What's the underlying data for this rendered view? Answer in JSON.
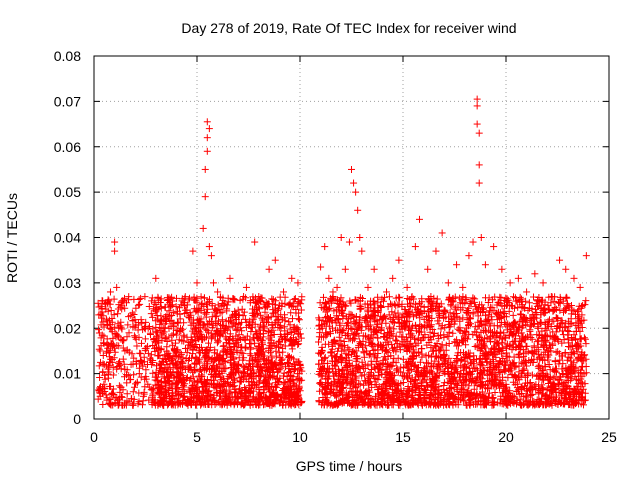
{
  "chart_data": {
    "type": "scatter",
    "title": "Day 278 of 2019, Rate Of TEC Index for receiver wind",
    "xlabel": "GPS time / hours",
    "ylabel": "ROTI / TECUs",
    "xlim": [
      0,
      25
    ],
    "ylim": [
      0,
      0.08
    ],
    "xticks": [
      0,
      5,
      10,
      15,
      20,
      25
    ],
    "xtick_labels": [
      "0",
      "5",
      "10",
      "15",
      "20",
      "25"
    ],
    "yticks": [
      0,
      0.01,
      0.02,
      0.03,
      0.04,
      0.05,
      0.06,
      0.07,
      0.08
    ],
    "ytick_labels": [
      "0",
      "0.01",
      "0.02",
      "0.03",
      "0.04",
      "0.05",
      "0.06",
      "0.07",
      "0.08"
    ],
    "grid": true,
    "marker": "+",
    "color": "#ff0000",
    "series": [
      {
        "values_note_free": true,
        "points": [
          [
            0.2,
            0.0255
          ],
          [
            0.3,
            0.015
          ],
          [
            0.3,
            0.005
          ],
          [
            0.4,
            0.0185
          ],
          [
            0.5,
            0.012
          ],
          [
            0.6,
            0.022
          ],
          [
            0.7,
            0.009
          ],
          [
            0.8,
            0.028
          ],
          [
            0.9,
            0.016
          ],
          [
            1.0,
            0.039
          ],
          [
            1.0,
            0.037
          ],
          [
            1.1,
            0.029
          ],
          [
            1.1,
            0.011
          ],
          [
            1.2,
            0.02
          ],
          [
            1.3,
            0.007
          ],
          [
            1.4,
            0.026
          ],
          [
            1.5,
            0.015
          ],
          [
            1.6,
            0.004
          ],
          [
            1.7,
            0.019
          ],
          [
            1.8,
            0.012
          ],
          [
            1.9,
            0.003
          ],
          [
            2.0,
            0.018
          ],
          [
            2.1,
            0.008
          ],
          [
            2.2,
            0.01
          ],
          [
            2.4,
            0.005
          ],
          [
            2.6,
            0.016
          ],
          [
            2.8,
            0.012
          ],
          [
            3.0,
            0.031
          ],
          [
            3.1,
            0.022
          ],
          [
            3.2,
            0.014
          ],
          [
            3.5,
            0.018
          ],
          [
            3.8,
            0.026
          ],
          [
            4.0,
            0.012
          ],
          [
            4.2,
            0.02
          ],
          [
            4.5,
            0.024
          ],
          [
            4.8,
            0.037
          ],
          [
            5.0,
            0.03
          ],
          [
            5.1,
            0.022
          ],
          [
            5.3,
            0.042
          ],
          [
            5.4,
            0.049
          ],
          [
            5.4,
            0.055
          ],
          [
            5.5,
            0.059
          ],
          [
            5.5,
            0.062
          ],
          [
            5.5,
            0.0655
          ],
          [
            5.6,
            0.064
          ],
          [
            5.6,
            0.038
          ],
          [
            5.7,
            0.036
          ],
          [
            5.8,
            0.03
          ],
          [
            6.0,
            0.028
          ],
          [
            6.3,
            0.025
          ],
          [
            6.6,
            0.031
          ],
          [
            7.0,
            0.024
          ],
          [
            7.4,
            0.029
          ],
          [
            7.8,
            0.039
          ],
          [
            8.0,
            0.027
          ],
          [
            8.5,
            0.033
          ],
          [
            8.8,
            0.035
          ],
          [
            9.2,
            0.028
          ],
          [
            9.6,
            0.031
          ],
          [
            9.9,
            0.03
          ],
          [
            11.0,
            0.0335
          ],
          [
            11.2,
            0.038
          ],
          [
            11.4,
            0.031
          ],
          [
            11.6,
            0.028
          ],
          [
            11.8,
            0.029
          ],
          [
            12.0,
            0.04
          ],
          [
            12.2,
            0.033
          ],
          [
            12.4,
            0.039
          ],
          [
            12.5,
            0.055
          ],
          [
            12.6,
            0.052
          ],
          [
            12.7,
            0.05
          ],
          [
            12.8,
            0.046
          ],
          [
            12.9,
            0.04
          ],
          [
            13.0,
            0.037
          ],
          [
            13.3,
            0.029
          ],
          [
            13.6,
            0.033
          ],
          [
            13.9,
            0.025
          ],
          [
            14.2,
            0.028
          ],
          [
            14.5,
            0.031
          ],
          [
            14.8,
            0.035
          ],
          [
            15.2,
            0.029
          ],
          [
            15.6,
            0.038
          ],
          [
            15.8,
            0.044
          ],
          [
            16.2,
            0.033
          ],
          [
            16.6,
            0.037
          ],
          [
            16.9,
            0.041
          ],
          [
            17.2,
            0.03
          ],
          [
            17.6,
            0.034
          ],
          [
            17.9,
            0.029
          ],
          [
            18.2,
            0.036
          ],
          [
            18.4,
            0.039
          ],
          [
            18.6,
            0.0705
          ],
          [
            18.6,
            0.069
          ],
          [
            18.6,
            0.065
          ],
          [
            18.7,
            0.063
          ],
          [
            18.7,
            0.056
          ],
          [
            18.7,
            0.052
          ],
          [
            18.8,
            0.04
          ],
          [
            19.0,
            0.034
          ],
          [
            19.4,
            0.038
          ],
          [
            19.8,
            0.033
          ],
          [
            20.2,
            0.03
          ],
          [
            20.6,
            0.031
          ],
          [
            21.0,
            0.028
          ],
          [
            21.4,
            0.032
          ],
          [
            21.8,
            0.03
          ],
          [
            22.2,
            0.027
          ],
          [
            22.6,
            0.035
          ],
          [
            22.9,
            0.033
          ],
          [
            23.3,
            0.031
          ],
          [
            23.6,
            0.029
          ],
          [
            23.9,
            0.036
          ]
        ]
      }
    ]
  }
}
